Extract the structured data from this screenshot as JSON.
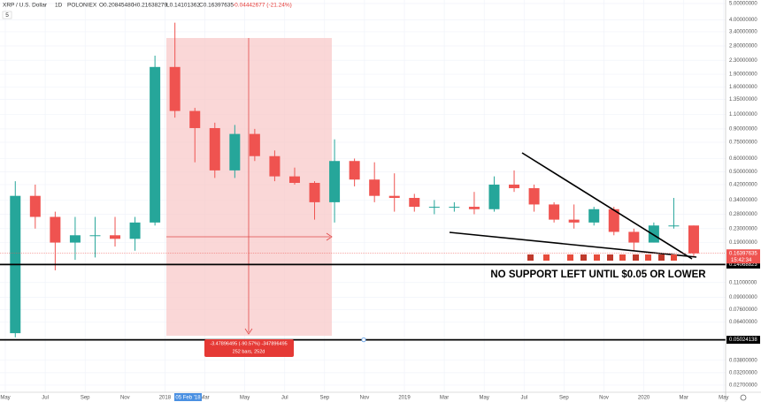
{
  "chart_data": {
    "type": "candlestick",
    "symbol": "XRP / U.S. Dollar",
    "interval": "1D",
    "exchange": "POLONIEX",
    "header_ohlc": [
      "O0.20845480",
      "H0.21638279",
      "L0.14101362",
      "C0.16397635",
      "-0.04442677 (-21.24%)"
    ],
    "scale_button": "5",
    "categories": [
      "May",
      null,
      "Jul",
      null,
      "Sep",
      null,
      "Nov",
      null,
      "2018",
      null,
      "Mar",
      null,
      "May",
      null,
      "Jul",
      null,
      "Sep",
      null,
      "Nov",
      null,
      "2019",
      null,
      "Mar",
      null,
      "May",
      null,
      "Jul",
      null,
      "Sep",
      null,
      "Nov",
      null,
      "2020",
      null,
      "Mar",
      null,
      "May"
    ],
    "crosshair_date": "05 Feb '18",
    "series": {
      "open": [
        0.055,
        0.36,
        0.27,
        0.19,
        0.21,
        0.21,
        0.2,
        0.25,
        2.1,
        1.15,
        0.91,
        0.51,
        0.84,
        0.62,
        0.47,
        0.43,
        0.33,
        0.58,
        0.45,
        0.36,
        0.35,
        0.31,
        0.31,
        0.31,
        0.3,
        0.42,
        0.4,
        0.32,
        0.26,
        0.25,
        0.3,
        0.22,
        0.19,
        0.24,
        0.24,
        null,
        null
      ],
      "high": [
        0.44,
        0.42,
        0.29,
        0.27,
        0.27,
        0.27,
        0.27,
        2.45,
        3.85,
        1.2,
        0.98,
        0.95,
        0.9,
        0.67,
        0.53,
        0.44,
        0.78,
        0.6,
        0.57,
        0.49,
        0.37,
        0.34,
        0.33,
        0.38,
        0.47,
        0.51,
        0.42,
        0.33,
        0.32,
        0.31,
        0.31,
        0.23,
        0.25,
        0.35,
        0.24,
        null,
        null
      ],
      "low": [
        0.052,
        0.23,
        0.13,
        0.15,
        0.155,
        0.18,
        0.17,
        0.24,
        1.05,
        0.57,
        0.46,
        0.46,
        0.58,
        0.44,
        0.42,
        0.26,
        0.25,
        0.41,
        0.33,
        0.29,
        0.29,
        0.28,
        0.29,
        0.28,
        0.29,
        0.38,
        0.29,
        0.25,
        0.23,
        0.24,
        0.21,
        0.17,
        0.19,
        0.23,
        0.158,
        null,
        null
      ],
      "close": [
        0.36,
        0.27,
        0.19,
        0.21,
        0.21,
        0.2,
        0.25,
        2.1,
        1.15,
        0.91,
        0.51,
        0.84,
        0.62,
        0.47,
        0.43,
        0.33,
        0.58,
        0.45,
        0.36,
        0.35,
        0.31,
        0.31,
        0.31,
        0.3,
        0.42,
        0.4,
        0.32,
        0.26,
        0.25,
        0.3,
        0.22,
        0.19,
        0.24,
        0.24,
        0.164,
        null,
        null
      ]
    },
    "up_color": "#26a69a",
    "down_color": "#ef5350",
    "log_scale": true,
    "grid": true,
    "ylim": [
      0.0245,
      5.25
    ],
    "yticks": [
      {
        "value": 5,
        "label": "5.00000000"
      },
      {
        "value": 4,
        "label": "4.00000000"
      },
      {
        "value": 3.4,
        "label": "3.40000000"
      },
      {
        "value": 2.8,
        "label": "2.80000000"
      },
      {
        "value": 2.3,
        "label": "2.30000000"
      },
      {
        "value": 1.9,
        "label": "1.90000000"
      },
      {
        "value": 1.6,
        "label": "1.60000000"
      },
      {
        "value": 1.35,
        "label": "1.35000000"
      },
      {
        "value": 1.1,
        "label": "1.10000000"
      },
      {
        "value": 0.9,
        "label": "0.90000000"
      },
      {
        "value": 0.75,
        "label": "0.75000000"
      },
      {
        "value": 0.6,
        "label": "0.60000000"
      },
      {
        "value": 0.5,
        "label": "0.50000000"
      },
      {
        "value": 0.42,
        "label": "0.42000000"
      },
      {
        "value": 0.34,
        "label": "0.34000000"
      },
      {
        "value": 0.28,
        "label": "0.28000000"
      },
      {
        "value": 0.23,
        "label": "0.23000000"
      },
      {
        "value": 0.19,
        "label": "0.19000000"
      },
      {
        "value": 0.11,
        "label": "0.11000000"
      },
      {
        "value": 0.09,
        "label": "0.09000000"
      },
      {
        "value": 0.076,
        "label": "0.07600000"
      },
      {
        "value": 0.064,
        "label": "0.06400000"
      },
      {
        "value": 0.038,
        "label": "0.03800000"
      },
      {
        "value": 0.032,
        "label": "0.03200000"
      },
      {
        "value": 0.027,
        "label": "0.02700000"
      }
    ],
    "last_price": {
      "value": 0.16397635,
      "label": "0.16397635"
    },
    "countdown": "15:42:34",
    "hlines": [
      {
        "value": 0.14068823,
        "label": "0.14068823"
      },
      {
        "value": 0.05024138,
        "label": "0.05024138"
      }
    ],
    "measure_label": [
      "-3.47896495 (-90.57%) -347896495",
      "252 bars, 252d"
    ],
    "annotation": "NO SUPPORT LEFT UNTIL $0.05 OR LOWER"
  }
}
